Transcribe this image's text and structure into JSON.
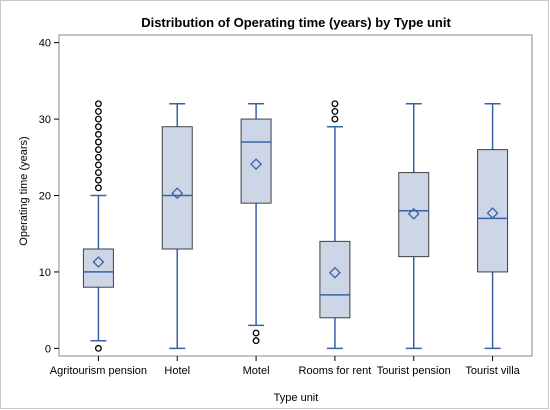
{
  "chart_data": {
    "type": "boxplot",
    "title": "Distribution of Operating time (years) by Type unit",
    "xlabel": "Type unit",
    "ylabel": "Operating time (years)",
    "ylim": [
      -1,
      41
    ],
    "yticks": [
      0,
      10,
      20,
      30,
      40
    ],
    "categories": [
      "Agritourism pension",
      "Hotel",
      "Motel",
      "Rooms for rent",
      "Tourist pension",
      "Tourist villa"
    ],
    "boxes": [
      {
        "category": "Agritourism pension",
        "whisker_low": 1,
        "q1": 8,
        "median": 10,
        "q3": 13,
        "whisker_high": 20,
        "mean": 11.3,
        "outliers": [
          0,
          21,
          22,
          23,
          24,
          25,
          26,
          27,
          28,
          29,
          30,
          31,
          32
        ]
      },
      {
        "category": "Hotel",
        "whisker_low": 0,
        "q1": 13,
        "median": 20,
        "q3": 29,
        "whisker_high": 32,
        "mean": 20.3,
        "outliers": []
      },
      {
        "category": "Motel",
        "whisker_low": 3,
        "q1": 19,
        "median": 27,
        "q3": 30,
        "whisker_high": 32,
        "mean": 24.1,
        "outliers": [
          1,
          2
        ]
      },
      {
        "category": "Rooms for rent",
        "whisker_low": 0,
        "q1": 4,
        "median": 7,
        "q3": 14,
        "whisker_high": 29,
        "mean": 9.9,
        "outliers": [
          30,
          31,
          32
        ]
      },
      {
        "category": "Tourist pension",
        "whisker_low": 0,
        "q1": 12,
        "median": 18,
        "q3": 23,
        "whisker_high": 32,
        "mean": 17.6,
        "outliers": []
      },
      {
        "category": "Tourist villa",
        "whisker_low": 0,
        "q1": 10,
        "median": 17,
        "q3": 26,
        "whisker_high": 32,
        "mean": 17.7,
        "outliers": []
      }
    ],
    "colors": {
      "box_fill": "#cdd6e6",
      "box_edge": "#404040",
      "whisker": "#3a62a8",
      "median": "#3a62a8",
      "mean": "#3a62a8",
      "outlier": "#000000"
    },
    "grid": false
  }
}
